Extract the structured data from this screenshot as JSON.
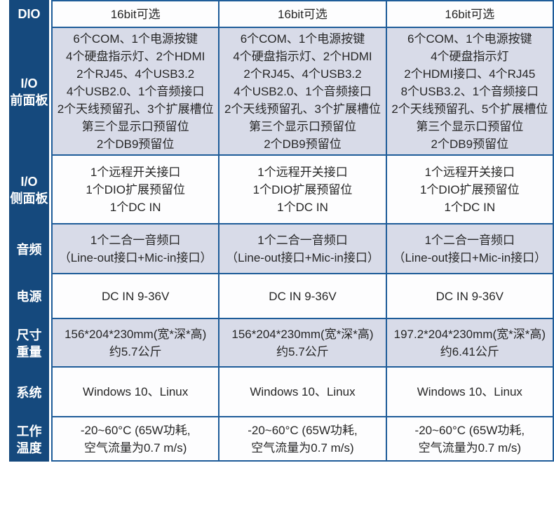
{
  "theme": {
    "sidebar_navy": "#15497D",
    "grid_line_blue": "#1E5C99",
    "shaded_cell": "#D8DBE8",
    "plain_cell": "#FDFDFE",
    "text_dark": "#262626",
    "header_text": "#FFFFFF"
  },
  "table": {
    "columns": 3,
    "rows": [
      {
        "header": "DIO",
        "cells": [
          "16bit可选",
          "16bit可选",
          "16bit可选"
        ]
      },
      {
        "header": "I/O\n前面板",
        "cells": [
          "6个COM、1个电源按键\n4个硬盘指示灯、2个HDMI\n2个RJ45、4个USB3.2\n4个USB2.0、1个音频接口\n2个天线预留孔、3个扩展槽位\n第三个显示口预留位\n2个DB9预留位",
          "6个COM、1个电源按键\n4个硬盘指示灯、2个HDMI\n2个RJ45、4个USB3.2\n4个USB2.0、1个音频接口\n2个天线预留孔、3个扩展槽位\n第三个显示口预留位\n2个DB9预留位",
          "6个COM、1个电源按键\n4个硬盘指示灯\n2个HDMI接口、4个RJ45\n8个USB3.2、1个音频接口\n2个天线预留孔、5个扩展槽位\n第三个显示口预留位\n2个DB9预留位"
        ]
      },
      {
        "header": "I/O\n侧面板",
        "cells": [
          "1个远程开关接口\n1个DIO扩展预留位\n1个DC IN",
          "1个远程开关接口\n1个DIO扩展预留位\n1个DC IN",
          "1个远程开关接口\n1个DIO扩展预留位\n1个DC IN"
        ]
      },
      {
        "header": "音频",
        "cells": [
          "1个二合一音频口\n（Line-out接口+Mic-in接口）",
          "1个二合一音频口\n（Line-out接口+Mic-in接口）",
          "1个二合一音频口\n（Line-out接口+Mic-in接口）"
        ]
      },
      {
        "header": "电源",
        "cells": [
          "DC IN 9-36V",
          "DC IN 9-36V",
          "DC IN 9-36V"
        ]
      },
      {
        "header": "尺寸\n重量",
        "cells": [
          "156*204*230mm(宽*深*高)\n约5.7公斤",
          "156*204*230mm(宽*深*高)\n约5.7公斤",
          "197.2*204*230mm(宽*深*高)\n约6.41公斤"
        ]
      },
      {
        "header": "系统",
        "cells": [
          "Windows 10、Linux",
          "Windows 10、Linux",
          "Windows 10、Linux"
        ]
      },
      {
        "header": "工作\n温度",
        "cells": [
          "-20~60°C (65W功耗,\n空气流量为0.7 m/s)",
          "-20~60°C (65W功耗,\n空气流量为0.7 m/s)",
          "-20~60°C (65W功耗,\n空气流量为0.7 m/s)"
        ]
      }
    ]
  }
}
